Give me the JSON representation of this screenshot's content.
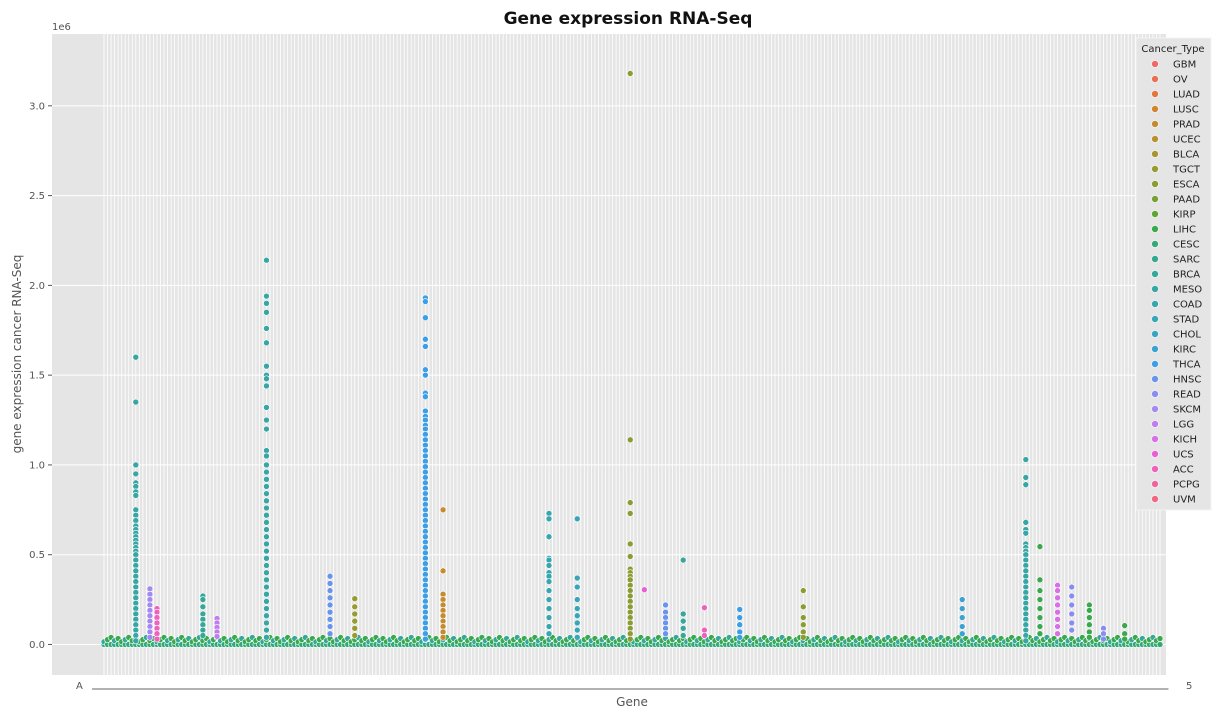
{
  "chart_data": {
    "type": "scatter",
    "title": "Gene expression RNA-Seq",
    "xlabel": "Gene",
    "ylabel": "gene expression cancer RNA-Seq",
    "y_offset_label": "1e6",
    "y_scale": 1000000,
    "ylim": [
      -170000,
      3400000
    ],
    "y_ticks": [
      0,
      500000,
      1000000,
      1500000,
      2000000,
      2500000,
      3000000
    ],
    "y_tick_labels": [
      "0.0",
      "0.5",
      "1.0",
      "1.5",
      "2.0",
      "2.5",
      "3.0"
    ],
    "x_tick_label_start": "A",
    "x_tick_label_end": "5",
    "num_genes": 300,
    "grid": true,
    "legend": {
      "title": "Cancer_Type",
      "placement": "top-right",
      "entries": [
        {
          "name": "GBM",
          "color": "#f0676c"
        },
        {
          "name": "OV",
          "color": "#ea6f50"
        },
        {
          "name": "LUAD",
          "color": "#e1773e"
        },
        {
          "name": "LUSC",
          "color": "#d4842f"
        },
        {
          "name": "PRAD",
          "color": "#c58b2f"
        },
        {
          "name": "UCEC",
          "color": "#b5922f"
        },
        {
          "name": "BLCA",
          "color": "#a69530"
        },
        {
          "name": "TGCT",
          "color": "#989a32"
        },
        {
          "name": "ESCA",
          "color": "#8a9c34"
        },
        {
          "name": "PAAD",
          "color": "#78a034"
        },
        {
          "name": "KIRP",
          "color": "#5ea535"
        },
        {
          "name": "LIHC",
          "color": "#3aa94e"
        },
        {
          "name": "CESC",
          "color": "#33a979"
        },
        {
          "name": "SARC",
          "color": "#35a88c"
        },
        {
          "name": "BRCA",
          "color": "#36a79a"
        },
        {
          "name": "MESO",
          "color": "#37a6a4"
        },
        {
          "name": "COAD",
          "color": "#38a6ae"
        },
        {
          "name": "STAD",
          "color": "#39a5b8"
        },
        {
          "name": "CHOL",
          "color": "#3aa4c3"
        },
        {
          "name": "KIRC",
          "color": "#3ba2d2"
        },
        {
          "name": "THCA",
          "color": "#3c9ee6"
        },
        {
          "name": "HNSC",
          "color": "#6a94ec"
        },
        {
          "name": "READ",
          "color": "#8a8df0"
        },
        {
          "name": "SKCM",
          "color": "#a489f0"
        },
        {
          "name": "LGG",
          "color": "#c07eec"
        },
        {
          "name": "KICH",
          "color": "#d770e4"
        },
        {
          "name": "UCS",
          "color": "#ea5fd6"
        },
        {
          "name": "ACC",
          "color": "#ee61bc"
        },
        {
          "name": "PCPG",
          "color": "#ef64a0"
        },
        {
          "name": "UVM",
          "color": "#f06684"
        }
      ]
    },
    "columns": [
      {
        "gene_index": 9,
        "color": "#37a6a4",
        "values": [
          1600000,
          1350000,
          1000000,
          950000,
          900000,
          880000,
          850000,
          830000,
          750000,
          720000,
          690000,
          660000,
          640000,
          620000,
          600000,
          580000,
          560000,
          540000,
          520000,
          500000,
          470000,
          440000,
          410000,
          380000,
          350000,
          320000,
          290000,
          260000,
          230000,
          200000,
          170000,
          140000,
          110000,
          80000,
          50000,
          20000
        ]
      },
      {
        "gene_index": 13,
        "color": "#a489f0",
        "values": [
          310000,
          280000,
          250000,
          220000,
          190000,
          160000,
          130000,
          100000,
          70000,
          40000
        ]
      },
      {
        "gene_index": 15,
        "color": "#ee61bc",
        "values": [
          200000,
          180000,
          150000,
          120000,
          90000,
          60000,
          30000
        ]
      },
      {
        "gene_index": 28,
        "color": "#36a79a",
        "values": [
          270000,
          250000,
          210000,
          170000,
          140000,
          110000,
          80000,
          50000
        ]
      },
      {
        "gene_index": 32,
        "color": "#c07eec",
        "values": [
          145000,
          120000,
          95000,
          70000,
          45000
        ]
      },
      {
        "gene_index": 46,
        "color": "#37a6a4",
        "values": [
          2140000,
          1940000,
          1900000,
          1850000,
          1760000,
          1680000,
          1550000,
          1500000,
          1480000,
          1440000,
          1320000,
          1250000,
          1200000,
          1080000,
          1050000,
          1000000,
          960000,
          920000,
          880000,
          840000,
          800000,
          760000,
          720000,
          680000,
          640000,
          600000,
          560000,
          520000,
          480000,
          440000,
          400000,
          360000,
          320000,
          280000,
          240000,
          200000,
          160000,
          120000,
          80000,
          40000
        ]
      },
      {
        "gene_index": 64,
        "color": "#6a94ec",
        "values": [
          380000,
          340000,
          300000,
          260000,
          220000,
          180000,
          140000,
          100000,
          60000
        ]
      },
      {
        "gene_index": 71,
        "color": "#989a32",
        "values": [
          255000,
          210000,
          170000,
          130000,
          90000,
          50000
        ]
      },
      {
        "gene_index": 91,
        "color": "#3c9ee6",
        "values": [
          1930000,
          1910000,
          1820000,
          1700000,
          1660000,
          1530000,
          1500000,
          1400000,
          1380000,
          1300000,
          1270000,
          1250000,
          1220000,
          1200000,
          1170000,
          1140000,
          1110000,
          1080000,
          1050000,
          1020000,
          990000,
          960000,
          930000,
          900000,
          870000,
          840000,
          810000,
          780000,
          750000,
          720000,
          690000,
          660000,
          630000,
          600000,
          570000,
          540000,
          510000,
          480000,
          450000,
          420000,
          390000,
          360000,
          330000,
          300000,
          270000,
          240000,
          210000,
          180000,
          150000,
          120000,
          90000,
          60000,
          30000
        ]
      },
      {
        "gene_index": 96,
        "color": "#c58b2f",
        "values": [
          750000,
          410000,
          280000,
          250000,
          220000,
          190000,
          160000,
          130000,
          100000,
          70000,
          40000
        ]
      },
      {
        "gene_index": 126,
        "color": "#38a6ae",
        "values": [
          730000,
          700000,
          600000,
          480000,
          470000,
          440000,
          400000,
          380000,
          350000,
          300000,
          250000,
          200000,
          150000,
          100000,
          60000
        ]
      },
      {
        "gene_index": 134,
        "color": "#39a5b8",
        "values": [
          700000,
          370000,
          320000,
          250000,
          200000,
          160000,
          120000,
          80000,
          40000
        ]
      },
      {
        "gene_index": 149,
        "color": "#8a9c34",
        "values": [
          3180000,
          1140000,
          790000,
          730000,
          560000,
          490000,
          420000,
          400000,
          380000,
          360000,
          330000,
          300000,
          270000,
          240000,
          210000,
          180000,
          150000,
          120000,
          90000,
          60000,
          30000
        ]
      },
      {
        "gene_index": 153,
        "color": "#ea5fd6",
        "values": [
          305000
        ]
      },
      {
        "gene_index": 159,
        "color": "#6a94ec",
        "values": [
          220000,
          180000,
          150000,
          120000,
          90000,
          60000
        ]
      },
      {
        "gene_index": 164,
        "color": "#36a79a",
        "values": [
          470000,
          170000,
          130000,
          90000,
          50000
        ]
      },
      {
        "gene_index": 170,
        "color": "#ee61bc",
        "values": [
          205000,
          80000,
          50000
        ]
      },
      {
        "gene_index": 180,
        "color": "#3c9ee6",
        "values": [
          195000,
          150000,
          110000,
          70000,
          40000
        ]
      },
      {
        "gene_index": 198,
        "color": "#8a9c34",
        "values": [
          300000,
          210000,
          150000,
          110000,
          70000,
          40000
        ]
      },
      {
        "gene_index": 243,
        "color": "#3ba2d2",
        "values": [
          250000,
          200000,
          150000,
          100000,
          60000
        ]
      },
      {
        "gene_index": 261,
        "color": "#37a6a4",
        "values": [
          1030000,
          930000,
          890000,
          680000,
          640000,
          620000,
          560000,
          540000,
          520000,
          500000,
          470000,
          440000,
          410000,
          380000,
          350000,
          320000,
          290000,
          260000,
          230000,
          200000,
          170000,
          140000,
          110000,
          80000,
          50000,
          20000
        ]
      },
      {
        "gene_index": 265,
        "color": "#3aa94e",
        "values": [
          545000,
          360000,
          300000,
          250000,
          200000,
          150000,
          100000,
          60000
        ]
      },
      {
        "gene_index": 270,
        "color": "#d770e4",
        "values": [
          330000,
          300000,
          260000,
          220000,
          180000,
          140000,
          100000,
          60000
        ]
      },
      {
        "gene_index": 274,
        "color": "#8a8df0",
        "values": [
          320000,
          270000,
          220000,
          170000,
          120000,
          80000
        ]
      },
      {
        "gene_index": 279,
        "color": "#3aa94e",
        "values": [
          220000,
          190000,
          150000,
          110000,
          70000,
          40000
        ]
      },
      {
        "gene_index": 283,
        "color": "#8a8df0",
        "values": [
          90000,
          60000,
          30000
        ]
      },
      {
        "gene_index": 289,
        "color": "#3aa94e",
        "values": [
          105000,
          60000,
          30000
        ]
      }
    ],
    "baseline_color": "#33a979",
    "annotations": []
  }
}
